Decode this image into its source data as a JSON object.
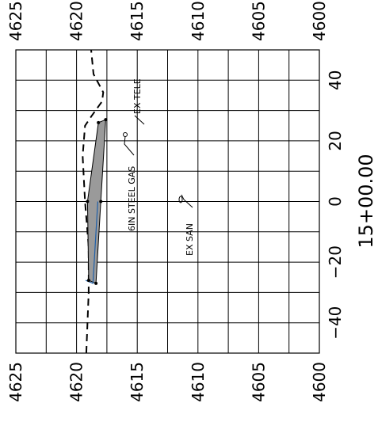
{
  "chart_data": {
    "type": "line",
    "title": "",
    "station_label": "15+00.00",
    "elevation_ticks": [
      "4625",
      "4620",
      "4615",
      "4610",
      "4605",
      "4600"
    ],
    "elevation_values": [
      4625,
      4620,
      4615,
      4610,
      4605,
      4600
    ],
    "offset_ticks": [
      "40",
      "20",
      "0",
      "−20",
      "−40"
    ],
    "offset_values": [
      40,
      20,
      0,
      -20,
      -40
    ],
    "offset_range": [
      -50,
      50
    ],
    "elevation_range": [
      4600,
      4625
    ],
    "grid": true,
    "series": [
      {
        "kind": "existing-ground",
        "style": "dashed",
        "points": [
          [
            -50,
            4619.2
          ],
          [
            -30,
            4619.0
          ],
          [
            -15,
            4619.0
          ],
          [
            0,
            4619.3
          ],
          [
            15,
            4619.5
          ],
          [
            25,
            4619.3
          ],
          [
            28,
            4618.8
          ],
          [
            33,
            4617.9
          ],
          [
            36,
            4617.8
          ],
          [
            42,
            4618.6
          ],
          [
            50,
            4618.8
          ]
        ]
      },
      {
        "kind": "trench",
        "style": "filled",
        "points": [
          [
            -26,
            4619.0
          ],
          [
            -27,
            4618.4
          ],
          [
            0,
            4618.0
          ],
          [
            27,
            4617.6
          ],
          [
            26,
            4618.2
          ],
          [
            0,
            4619.1
          ]
        ]
      }
    ],
    "annotations": {
      "gas": "6IN STEEL GAS",
      "san": "EX SAN",
      "tele": "EX TELE"
    }
  }
}
